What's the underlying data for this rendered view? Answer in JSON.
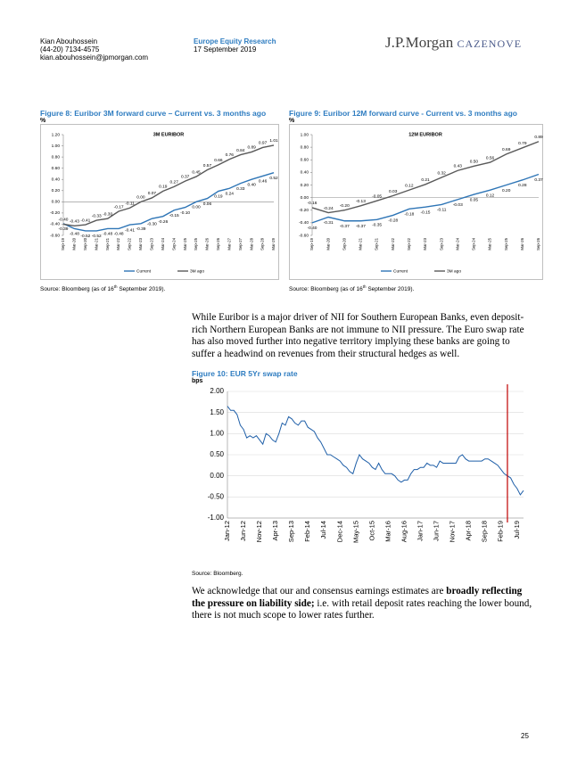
{
  "header": {
    "author": "Kian Abouhossein",
    "phone": "(44-20) 7134-4575",
    "email": "kian.abouhossein@jpmorgan.com",
    "department": "Europe Equity Research",
    "date": "17 September 2019",
    "logo": "J.P.Morgan",
    "logo_suffix": "CAZENOVE"
  },
  "paragraphs": [
    [
      "While Euribor is a major driver of NII for Southern European Banks, even deposit-rich Northern European Banks are not immune to NII pressure. The Euro swap rate has also moved further into negative territory implying these banks are going to suffer a headwind on revenues from their structural hedges as well."
    ],
    [
      "We acknowledge that our and consensus earnings estimates are ",
      "broadly reflecting the pressure on liability side;",
      " i.e. with retail deposit rates reaching the lower bound, there is not much scope to lower rates further."
    ]
  ],
  "page_number": "25",
  "chart_data": [
    {
      "type": "line",
      "title": "Figure 8: Euribor 3M forward curve – Current vs. 3 months ago",
      "y_label": "%",
      "inner_title": "3M EURIBOR",
      "source": [
        "Source: Bloomberg (as of 16",
        "th",
        " September 2019)."
      ],
      "categories": [
        "Sep-19",
        "Mar-20",
        "Sep-20",
        "Mar-21",
        "Sep-21",
        "Mar-22",
        "Sep-22",
        "Mar-23",
        "Sep-23",
        "Mar-24",
        "Sep-24",
        "Mar-25",
        "Sep-25",
        "Mar-26",
        "Sep-26",
        "Mar-27",
        "Sep-27",
        "Mar-28",
        "Sep-28",
        "Mar-29"
      ],
      "series": [
        {
          "name": "Current",
          "color": "#2e75b6",
          "values": [
            -0.39,
            -0.48,
            -0.52,
            -0.52,
            -0.48,
            -0.48,
            -0.41,
            -0.39,
            -0.3,
            -0.26,
            -0.15,
            -0.1,
            0,
            0.06,
            0.19,
            0.24,
            0.33,
            0.4,
            0.46,
            0.52
          ],
          "value_labels": [
            "-0.39",
            "-0.48",
            "-0.52",
            "-0.52",
            "-0.48",
            "-0.48",
            "-0.41",
            "-0.39",
            "-0.30",
            "-0.26",
            "-0.15",
            "-0.10",
            "0.00",
            "0.06",
            "0.19",
            "0.24",
            "0.33",
            "0.40",
            "0.46",
            "0.52"
          ]
        },
        {
          "name": "3M ago",
          "color": "#595959",
          "values": [
            -0.4,
            -0.43,
            -0.41,
            -0.33,
            -0.3,
            -0.17,
            -0.11,
            0,
            0.07,
            0.19,
            0.27,
            0.37,
            0.45,
            0.57,
            0.66,
            0.76,
            0.84,
            0.89,
            0.97,
            1.01
          ],
          "value_labels": [
            "-0.40",
            "-0.43",
            "-0.41",
            "-0.33",
            "-0.30",
            "-0.17",
            "-0.11",
            "0.00",
            "0.07",
            "0.19",
            "0.27",
            "0.37",
            "0.45",
            "0.57",
            "0.66",
            "0.76",
            "0.84",
            "0.89",
            "0.97",
            "1.01"
          ]
        }
      ],
      "ylim": [
        -0.6,
        1.2
      ],
      "yticks": [
        {
          "value": -0.6,
          "label": "-0.60"
        },
        {
          "value": -0.4,
          "label": "-0.40"
        },
        {
          "value": -0.2,
          "label": "-0.20"
        },
        {
          "value": 0,
          "label": "0.00"
        },
        {
          "value": 0.2,
          "label": "0.20"
        },
        {
          "value": 0.4,
          "label": "0.40"
        },
        {
          "value": 0.6,
          "label": "0.60"
        },
        {
          "value": 0.8,
          "label": "0.80"
        },
        {
          "value": 1,
          "label": "1.00"
        },
        {
          "value": 1.2,
          "label": "1.20"
        }
      ],
      "grid": false
    },
    {
      "type": "line",
      "title": "Figure 9: Euribor 12M forward curve - Current vs. 3 months ago",
      "y_label": "%",
      "inner_title": "12M EURIBOR",
      "source": [
        "Source: Bloomberg (as of 16",
        "th",
        " September 2019)."
      ],
      "categories": [
        "Sep-19",
        "Mar-20",
        "Sep-20",
        "Mar-21",
        "Sep-21",
        "Mar-22",
        "Sep-22",
        "Mar-23",
        "Sep-23",
        "Mar-24",
        "Sep-24",
        "Mar-25",
        "Sep-25",
        "Mar-26",
        "Sep-26"
      ],
      "series": [
        {
          "name": "Current",
          "color": "#2e75b6",
          "values": [
            -0.4,
            -0.31,
            -0.37,
            -0.37,
            -0.35,
            -0.28,
            -0.18,
            -0.15,
            -0.11,
            -0.03,
            0.05,
            0.12,
            0.2,
            0.28,
            0.37
          ],
          "value_labels": [
            "-0.40",
            "-0.31",
            "-0.37",
            "-0.37",
            "-0.35",
            "-0.28",
            "-0.18",
            "-0.15",
            "-0.11",
            "-0.03",
            "0.05",
            "0.12",
            "0.20",
            "0.28",
            "0.37"
          ]
        },
        {
          "name": "3M ago",
          "color": "#595959",
          "values": [
            -0.16,
            -0.24,
            -0.2,
            -0.13,
            -0.05,
            0.03,
            0.12,
            0.21,
            0.32,
            0.43,
            0.5,
            0.56,
            0.69,
            0.79,
            0.89
          ],
          "value_labels": [
            "-0.16",
            "-0.24",
            "-0.20",
            "-0.13",
            "-0.05",
            "0.03",
            "0.12",
            "0.21",
            "0.32",
            "0.43",
            "0.50",
            "0.56",
            "0.69",
            "0.79",
            "0.89"
          ]
        }
      ],
      "ylim": [
        -0.6,
        1
      ],
      "yticks": [
        {
          "value": -0.6,
          "label": "-0.60"
        },
        {
          "value": -0.4,
          "label": "-0.40"
        },
        {
          "value": -0.2,
          "label": "-0.20"
        },
        {
          "value": 0,
          "label": "0.00"
        },
        {
          "value": 0.2,
          "label": "0.20"
        },
        {
          "value": 0.4,
          "label": "0.40"
        },
        {
          "value": 0.6,
          "label": "0.60"
        },
        {
          "value": 0.8,
          "label": "0.80"
        },
        {
          "value": 1,
          "label": "1.00"
        }
      ],
      "grid": false
    },
    {
      "type": "line",
      "title": "Figure 10: EUR 5Yr swap rate",
      "y_label": "bps",
      "source": [
        "Source: Bloomberg."
      ],
      "categories": [
        "Jan-12",
        null,
        null,
        null,
        null,
        "Jun-12",
        null,
        null,
        null,
        null,
        "Nov-12",
        null,
        null,
        null,
        null,
        "Apr-13",
        null,
        null,
        null,
        null,
        "Sep-13",
        null,
        null,
        null,
        null,
        "Feb-14",
        null,
        null,
        null,
        null,
        "Jul-14",
        null,
        null,
        null,
        null,
        "Dec-14",
        null,
        null,
        null,
        null,
        "May-15",
        null,
        null,
        null,
        null,
        "Oct-15",
        null,
        null,
        null,
        null,
        "Mar-16",
        null,
        null,
        null,
        null,
        "Aug-16",
        null,
        null,
        null,
        null,
        "Jan-17",
        null,
        null,
        null,
        null,
        "Jun-17",
        null,
        null,
        null,
        null,
        "Nov-17",
        null,
        null,
        null,
        null,
        "Apr-18",
        null,
        null,
        null,
        null,
        "Sep-18",
        null,
        null,
        null,
        null,
        "Feb-19",
        null,
        null,
        null,
        null,
        "Jul-19",
        null,
        null
      ],
      "color": "#1f5fa8",
      "values": [
        1.65,
        1.55,
        1.55,
        1.45,
        1.2,
        1.1,
        0.9,
        0.95,
        0.9,
        0.95,
        0.85,
        0.75,
        1.0,
        0.95,
        0.85,
        0.8,
        1.0,
        1.25,
        1.2,
        1.4,
        1.35,
        1.25,
        1.2,
        1.3,
        1.3,
        1.15,
        1.1,
        1.05,
        0.9,
        0.8,
        0.65,
        0.5,
        0.5,
        0.45,
        0.4,
        0.35,
        0.25,
        0.2,
        0.1,
        0.05,
        0.3,
        0.5,
        0.4,
        0.35,
        0.3,
        0.2,
        0.15,
        0.3,
        0.15,
        0.05,
        0.05,
        0.05,
        0.0,
        -0.1,
        -0.15,
        -0.1,
        -0.1,
        0.05,
        0.15,
        0.15,
        0.2,
        0.2,
        0.3,
        0.25,
        0.25,
        0.2,
        0.35,
        0.3,
        0.3,
        0.3,
        0.3,
        0.3,
        0.45,
        0.5,
        0.4,
        0.35,
        0.35,
        0.35,
        0.35,
        0.35,
        0.4,
        0.4,
        0.35,
        0.3,
        0.25,
        0.15,
        0.05,
        0.0,
        -0.05,
        -0.2,
        -0.3,
        -0.45,
        -0.35
      ],
      "ylim": [
        -1,
        2
      ],
      "yticks": [
        {
          "value": -1,
          "label": "-1.00"
        },
        {
          "value": -0.5,
          "label": "-0.50"
        },
        {
          "value": 0,
          "label": "0.00"
        },
        {
          "value": 0.5,
          "label": "0.50"
        },
        {
          "value": 1,
          "label": "1.00"
        },
        {
          "value": 1.5,
          "label": "1.50"
        },
        {
          "value": 2,
          "label": "2.00"
        }
      ],
      "grid": true
    }
  ]
}
